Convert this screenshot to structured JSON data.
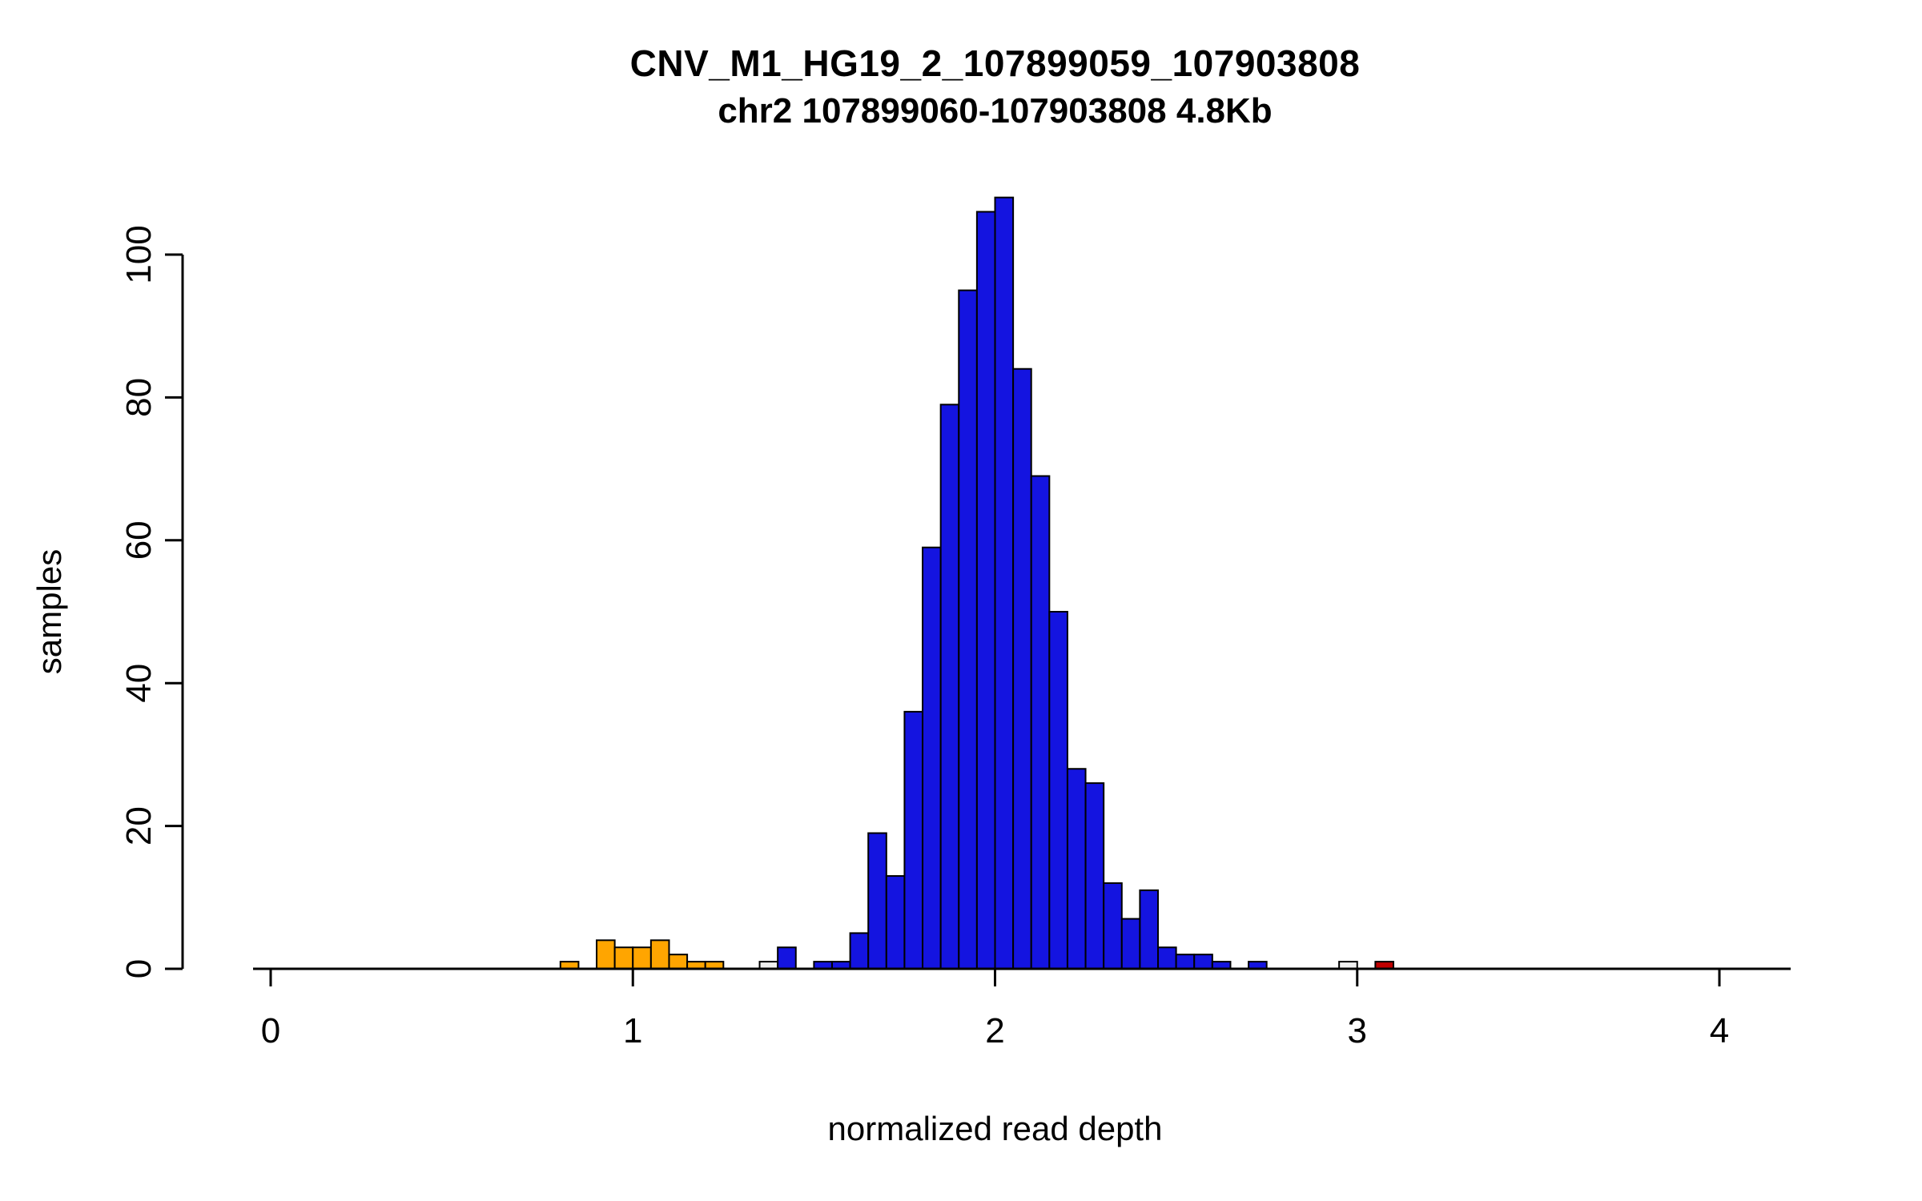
{
  "page": {
    "background": "#FFFFFF"
  },
  "chart_data": {
    "type": "bar",
    "variant": "histogram",
    "title": "CNV_M1_HG19_2_107899059_107903808",
    "subtitle": "chr2 107899060-107903808 4.8Kb",
    "xlabel": "normalized read depth",
    "ylabel": "samples",
    "xlim": [
      0,
      4.2
    ],
    "ylim": [
      0,
      110
    ],
    "xticks": [
      0,
      1,
      2,
      3,
      4
    ],
    "yticks": [
      0,
      20,
      40,
      60,
      80,
      100
    ],
    "grid": false,
    "legend": false,
    "bin_width": 0.05,
    "colors": {
      "blue": "#1414E0",
      "orange": "#FFA500",
      "gray": "#F0F0F0",
      "red": "#C00000",
      "bar_stroke": "#000000",
      "axis": "#000000",
      "text": "#000000"
    },
    "bars": [
      {
        "x": 0.8,
        "count": 1,
        "color": "orange"
      },
      {
        "x": 0.9,
        "count": 4,
        "color": "orange"
      },
      {
        "x": 0.95,
        "count": 3,
        "color": "orange"
      },
      {
        "x": 1.0,
        "count": 3,
        "color": "orange"
      },
      {
        "x": 1.05,
        "count": 4,
        "color": "orange"
      },
      {
        "x": 1.1,
        "count": 2,
        "color": "orange"
      },
      {
        "x": 1.15,
        "count": 1,
        "color": "orange"
      },
      {
        "x": 1.2,
        "count": 1,
        "color": "orange"
      },
      {
        "x": 1.35,
        "count": 1,
        "color": "gray"
      },
      {
        "x": 1.4,
        "count": 3,
        "color": "blue"
      },
      {
        "x": 1.5,
        "count": 1,
        "color": "blue"
      },
      {
        "x": 1.55,
        "count": 1,
        "color": "blue"
      },
      {
        "x": 1.6,
        "count": 5,
        "color": "blue"
      },
      {
        "x": 1.65,
        "count": 19,
        "color": "blue"
      },
      {
        "x": 1.7,
        "count": 13,
        "color": "blue"
      },
      {
        "x": 1.75,
        "count": 36,
        "color": "blue"
      },
      {
        "x": 1.8,
        "count": 59,
        "color": "blue"
      },
      {
        "x": 1.85,
        "count": 79,
        "color": "blue"
      },
      {
        "x": 1.9,
        "count": 95,
        "color": "blue"
      },
      {
        "x": 1.95,
        "count": 106,
        "color": "blue"
      },
      {
        "x": 2.0,
        "count": 108,
        "color": "blue"
      },
      {
        "x": 2.05,
        "count": 84,
        "color": "blue"
      },
      {
        "x": 2.1,
        "count": 69,
        "color": "blue"
      },
      {
        "x": 2.15,
        "count": 50,
        "color": "blue"
      },
      {
        "x": 2.2,
        "count": 28,
        "color": "blue"
      },
      {
        "x": 2.25,
        "count": 26,
        "color": "blue"
      },
      {
        "x": 2.3,
        "count": 12,
        "color": "blue"
      },
      {
        "x": 2.35,
        "count": 7,
        "color": "blue"
      },
      {
        "x": 2.4,
        "count": 11,
        "color": "blue"
      },
      {
        "x": 2.45,
        "count": 3,
        "color": "blue"
      },
      {
        "x": 2.5,
        "count": 2,
        "color": "blue"
      },
      {
        "x": 2.55,
        "count": 2,
        "color": "blue"
      },
      {
        "x": 2.6,
        "count": 1,
        "color": "blue"
      },
      {
        "x": 2.7,
        "count": 1,
        "color": "blue"
      },
      {
        "x": 2.95,
        "count": 1,
        "color": "gray"
      },
      {
        "x": 3.05,
        "count": 1,
        "color": "red"
      }
    ]
  }
}
